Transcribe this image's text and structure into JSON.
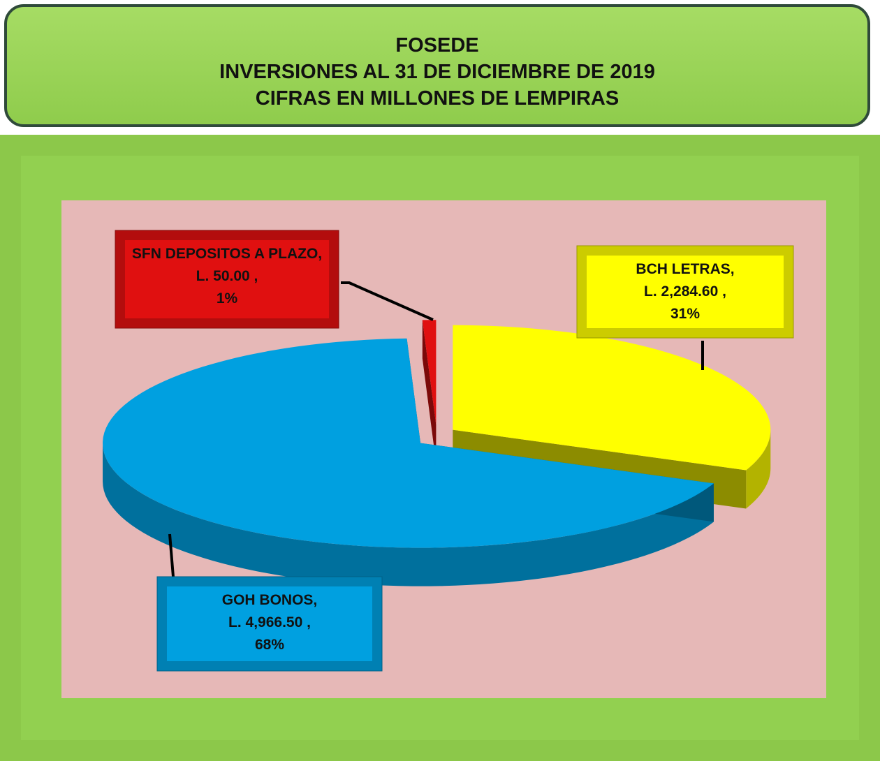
{
  "chart_data": {
    "type": "pie3d",
    "title": [
      "FOSEDE",
      "INVERSIONES AL 31 DE DICIEMBRE DE 2019",
      "CIFRAS EN MILLONES DE LEMPIRAS"
    ],
    "categories": [
      "BCH LETRAS,",
      "GOH BONOS,",
      "SFN DEPOSITOS A PLAZO,"
    ],
    "values": [
      2284.6,
      4966.5,
      50
    ],
    "value_labels": [
      "L. 2,284.60 ,",
      "L. 4,966.50 ,",
      "L. 50.00 ,"
    ],
    "percent_labels": [
      "31%",
      "68%",
      "1%"
    ],
    "colors": [
      "#ffff00",
      "#00a0e0",
      "#e01010"
    ]
  }
}
